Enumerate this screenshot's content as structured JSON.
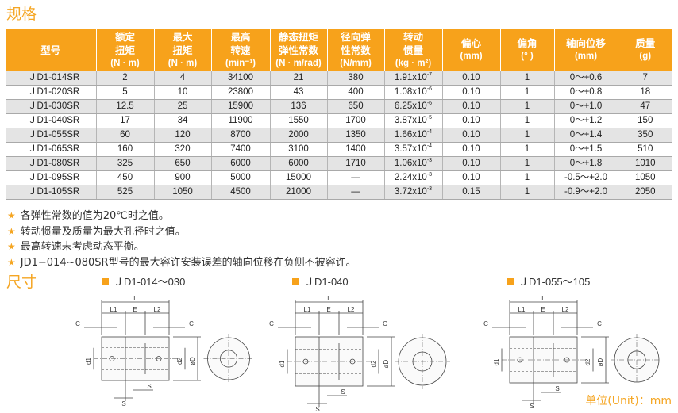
{
  "spec_title": "规格",
  "table": {
    "headers": [
      {
        "lines": [
          "型号"
        ],
        "unit": ""
      },
      {
        "lines": [
          "额定",
          "扭矩"
        ],
        "unit": "(N · m)"
      },
      {
        "lines": [
          "最大",
          "扭矩"
        ],
        "unit": "(N · m)"
      },
      {
        "lines": [
          "最高",
          "转速"
        ],
        "unit": "(min⁻¹)"
      },
      {
        "lines": [
          "静态扭矩",
          "弹性常数"
        ],
        "unit": "(N · m/rad)"
      },
      {
        "lines": [
          "径向弹",
          "性常数"
        ],
        "unit": "(N/mm)"
      },
      {
        "lines": [
          "转动",
          "惯量"
        ],
        "unit": "(kg · m²)"
      },
      {
        "lines": [
          "偏心"
        ],
        "unit": "(mm)"
      },
      {
        "lines": [
          "偏角"
        ],
        "unit": "(° )"
      },
      {
        "lines": [
          "轴向位移"
        ],
        "unit": "(mm)"
      },
      {
        "lines": [
          "质量"
        ],
        "unit": "(g)"
      }
    ],
    "rows": [
      {
        "model": "ＪD1-014SR",
        "rated": "2",
        "max": "4",
        "speed": "34100",
        "static": "21",
        "radial": "380",
        "inertia": "1.91x10",
        "exp": "-7",
        "ecc": "0.10",
        "angle": "1",
        "axial": "0～+0.6",
        "mass": "7"
      },
      {
        "model": "ＪD1-020SR",
        "rated": "5",
        "max": "10",
        "speed": "23800",
        "static": "43",
        "radial": "400",
        "inertia": "1.08x10",
        "exp": "-6",
        "ecc": "0.10",
        "angle": "1",
        "axial": "0～+0.8",
        "mass": "18"
      },
      {
        "model": "ＪD1-030SR",
        "rated": "12.5",
        "max": "25",
        "speed": "15900",
        "static": "136",
        "radial": "650",
        "inertia": "6.25x10",
        "exp": "-6",
        "ecc": "0.10",
        "angle": "1",
        "axial": "0～+1.0",
        "mass": "47"
      },
      {
        "model": "ＪD1-040SR",
        "rated": "17",
        "max": "34",
        "speed": "11900",
        "static": "1550",
        "radial": "1700",
        "inertia": "3.87x10",
        "exp": "-5",
        "ecc": "0.10",
        "angle": "1",
        "axial": "0～+1.2",
        "mass": "150"
      },
      {
        "model": "ＪD1-055SR",
        "rated": "60",
        "max": "120",
        "speed": "8700",
        "static": "2000",
        "radial": "1350",
        "inertia": "1.66x10",
        "exp": "-4",
        "ecc": "0.10",
        "angle": "1",
        "axial": "0～+1.4",
        "mass": "350"
      },
      {
        "model": "ＪD1-065SR",
        "rated": "160",
        "max": "320",
        "speed": "7400",
        "static": "3100",
        "radial": "1400",
        "inertia": "3.57x10",
        "exp": "-4",
        "ecc": "0.10",
        "angle": "1",
        "axial": "0～+1.5",
        "mass": "510"
      },
      {
        "model": "ＪD1-080SR",
        "rated": "325",
        "max": "650",
        "speed": "6000",
        "static": "6000",
        "radial": "1710",
        "inertia": "1.06x10",
        "exp": "-3",
        "ecc": "0.10",
        "angle": "1",
        "axial": "0～+1.8",
        "mass": "1010"
      },
      {
        "model": "ＪD1-095SR",
        "rated": "450",
        "max": "900",
        "speed": "5000",
        "static": "15000",
        "radial": "—",
        "inertia": "2.24x10",
        "exp": "-3",
        "ecc": "0.10",
        "angle": "1",
        "axial": "-0.5～+2.0",
        "mass": "1050"
      },
      {
        "model": "ＪD1-105SR",
        "rated": "525",
        "max": "1050",
        "speed": "4500",
        "static": "21000",
        "radial": "—",
        "inertia": "3.72x10",
        "exp": "-3",
        "ecc": "0.15",
        "angle": "1",
        "axial": "-0.9～+2.0",
        "mass": "2050"
      }
    ]
  },
  "notes": [
    "各弹性常数的值为20℃时之值。",
    "转动惯量及质量为最大孔径时之值。",
    "最高转速未考虑动态平衡。",
    "JD1−014~080SR型号的最大容许安装误差的轴向位移在负侧不被容许。"
  ],
  "note_icon": "star-icon",
  "accent_color": "#f7a21b",
  "dimensions_title": "尺寸",
  "drawings": [
    {
      "title": "ＪD1-014～030",
      "labels": {
        "L": "L",
        "L1": "L1",
        "E": "E",
        "L2": "L2",
        "C": "C",
        "S": "S",
        "d1": "d1",
        "d2": "d2",
        "D": "øD"
      }
    },
    {
      "title": "ＪD1-040",
      "labels": {
        "L": "L",
        "L1": "L1",
        "E": "E",
        "L2": "L2",
        "C": "C",
        "S": "S",
        "d1": "d1",
        "d2": "d2",
        "D": "øD"
      }
    },
    {
      "title": "ＪD1-055～105",
      "labels": {
        "L": "L",
        "L1": "L1",
        "E": "E",
        "L2": "L2",
        "C": "C",
        "S": "S",
        "d1": "d1",
        "d2": "d2",
        "D": "øD"
      }
    }
  ],
  "unit_label": "单位(Unit)：mm"
}
